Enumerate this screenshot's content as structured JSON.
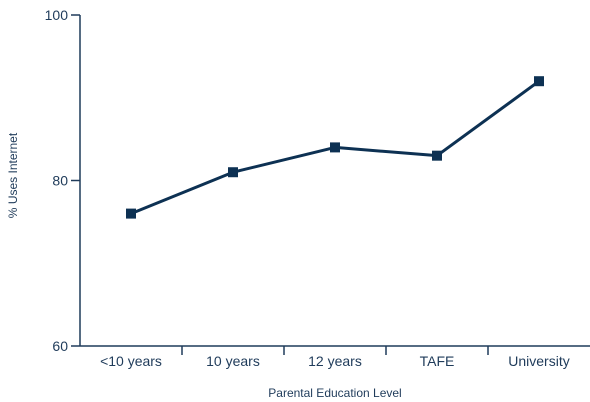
{
  "chart_data": {
    "type": "line",
    "title": "",
    "xlabel": "Parental Education Level",
    "ylabel": "% Uses Internet",
    "categories": [
      "<10 years",
      "10 years",
      "12 years",
      "TAFE",
      "University"
    ],
    "series": [
      {
        "values": [
          76,
          81,
          84,
          83,
          92
        ]
      }
    ],
    "ylim": [
      60,
      100
    ],
    "yticks": [
      60,
      80,
      100
    ],
    "grid": false,
    "marker": "square",
    "colors": {
      "line": "#0d3153",
      "axis": "#1f3b5a",
      "text": "#1f3b5a"
    }
  }
}
